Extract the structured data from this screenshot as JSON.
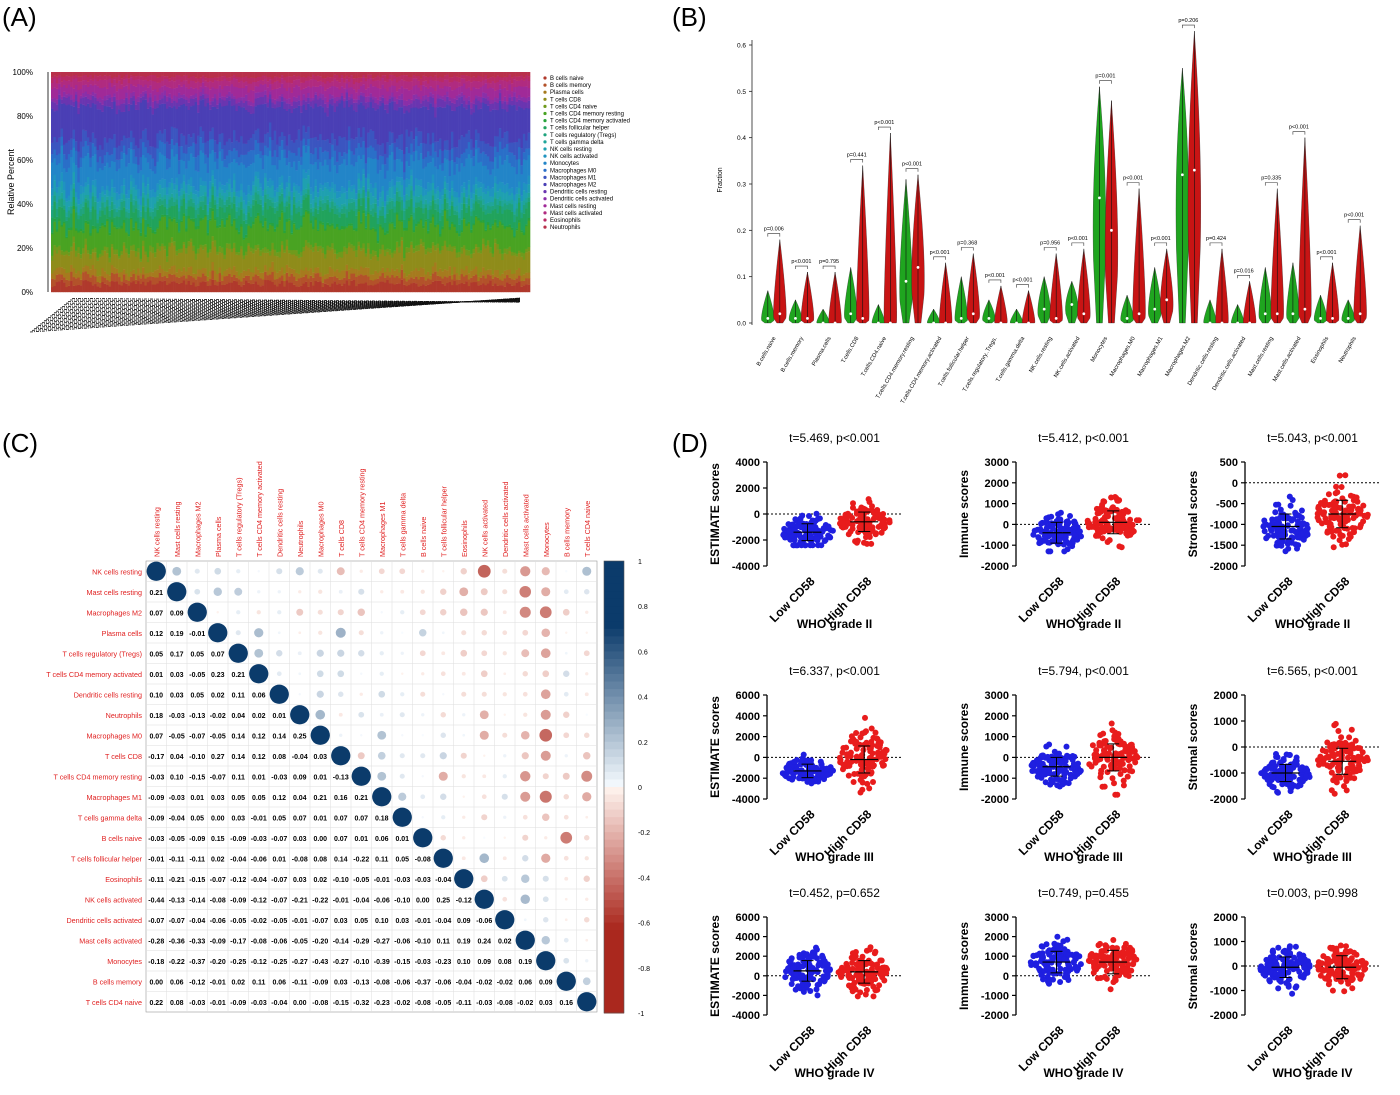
{
  "panel_labels": {
    "a": "(A)",
    "b": "(B)",
    "c": "(C)",
    "d": "(D)"
  },
  "colors": {
    "low": "#1f1fe0",
    "high": "#e81c1c",
    "violin_low": "#1fa51f",
    "violin_high": "#c81414",
    "corr_pos": "#0b3b6b",
    "corr_neg": "#7a0018",
    "corr_label": "#e02020"
  },
  "chart_data": [
    {
      "type": "bar",
      "panel": "A",
      "stacked": true,
      "percent": true,
      "samples_approx": 200,
      "ylabel": "Relative Percent",
      "yticks": [
        "0%",
        "20%",
        "40%",
        "60%",
        "80%",
        "100%"
      ],
      "ylim": [
        0,
        100
      ],
      "legend_position": "right",
      "series": [
        {
          "name": "B cells naive",
          "color": "#b0392c"
        },
        {
          "name": "B cells memory",
          "color": "#b3522a"
        },
        {
          "name": "Plasma cells",
          "color": "#a67a1e"
        },
        {
          "name": "T cells CD8",
          "color": "#8f8c1a"
        },
        {
          "name": "T cells CD4 naive",
          "color": "#6f9a1c"
        },
        {
          "name": "T cells CD4 memory resting",
          "color": "#49a322"
        },
        {
          "name": "T cells CD4 memory activated",
          "color": "#29a33b"
        },
        {
          "name": "T cells follicular helper",
          "color": "#21a35c"
        },
        {
          "name": "T cells regulatory (Tregs)",
          "color": "#1fa37d"
        },
        {
          "name": "T cells gamma delta",
          "color": "#1fa59a"
        },
        {
          "name": "NK cells resting",
          "color": "#1fa0b0"
        },
        {
          "name": "NK cells activated",
          "color": "#1f93c0"
        },
        {
          "name": "Monocytes",
          "color": "#2285c8"
        },
        {
          "name": "Macrophages M0",
          "color": "#2a6fc8"
        },
        {
          "name": "Macrophages M1",
          "color": "#3b55c0"
        },
        {
          "name": "Macrophages M2",
          "color": "#4a3fb5"
        },
        {
          "name": "Dendritic cells resting",
          "color": "#6a35b0"
        },
        {
          "name": "Dendritic cells activated",
          "color": "#8a2fa8"
        },
        {
          "name": "Mast cells resting",
          "color": "#a02a98"
        },
        {
          "name": "Mast cells activated",
          "color": "#b02b80"
        },
        {
          "name": "Eosinophils",
          "color": "#b82b65"
        },
        {
          "name": "Neutrophils",
          "color": "#b8304a"
        }
      ]
    },
    {
      "type": "violin",
      "panel": "B",
      "ylabel": "Fraction",
      "ylim": [
        0,
        0.65
      ],
      "yticks": [
        0.0,
        0.1,
        0.2,
        0.3,
        0.4,
        0.5,
        0.6
      ],
      "categories": [
        "B.cells.naive",
        "B.cells.memory",
        "Plasma.cells",
        "T.cells.CD8",
        "T.cells.CD4.naive",
        "T.cells.CD4.memory.resting",
        "T.cells.CD4.memory.activated",
        "T.cells.follicular.helper",
        "T.cells.regulatory..Tregs.",
        "T.cells.gamma.delta",
        "NK.cells.resting",
        "NK.cells.activated",
        "Monocytes",
        "Macrophages.M0",
        "Macrophages.M1",
        "Macrophages.M2",
        "Dendritic.cells.resting",
        "Dendritic.cells.activated",
        "Mast.cells.resting",
        "Mast.cells.activated",
        "Eosinophils",
        "Neutrophils"
      ],
      "pvalues": [
        "p=0.006",
        "p<0.001",
        "p=0.795",
        "p=0.441",
        "p<0.001",
        "p<0.001",
        "p<0.001",
        "p=0.368",
        "p<0.001",
        "p<0.001",
        "p=0.956",
        "p<0.001",
        "p=0.001",
        "p<0.001",
        "p<0.001",
        "p=0.206",
        "p=0.424",
        "p=0.016",
        "p=0.335",
        "p<0.001",
        "p<0.001",
        "p<0.001"
      ],
      "low_max": [
        0.07,
        0.05,
        0.03,
        0.12,
        0.04,
        0.31,
        0.03,
        0.1,
        0.05,
        0.03,
        0.1,
        0.09,
        0.51,
        0.06,
        0.12,
        0.55,
        0.05,
        0.04,
        0.12,
        0.13,
        0.06,
        0.05
      ],
      "high_max": [
        0.18,
        0.11,
        0.11,
        0.34,
        0.41,
        0.32,
        0.13,
        0.15,
        0.08,
        0.07,
        0.15,
        0.16,
        0.48,
        0.29,
        0.16,
        0.63,
        0.16,
        0.09,
        0.29,
        0.4,
        0.13,
        0.21
      ],
      "low_median": [
        0.01,
        0.01,
        0.0,
        0.02,
        0.0,
        0.09,
        0.0,
        0.01,
        0.01,
        0.0,
        0.03,
        0.04,
        0.27,
        0.01,
        0.03,
        0.32,
        0.0,
        0.0,
        0.02,
        0.02,
        0.01,
        0.01
      ],
      "high_median": [
        0.02,
        0.01,
        0.0,
        0.01,
        0.0,
        0.12,
        0.0,
        0.02,
        0.0,
        0.0,
        0.01,
        0.02,
        0.2,
        0.02,
        0.05,
        0.33,
        0.0,
        0.0,
        0.02,
        0.03,
        0.01,
        0.02
      ]
    },
    {
      "type": "heatmap",
      "panel": "C",
      "labels": [
        "NK cells resting",
        "Mast cells resting",
        "Macrophages M2",
        "Plasma cells",
        "T cells regulatory (Tregs)",
        "T cells CD4 memory activated",
        "Dendritic cells resting",
        "Neutrophils",
        "Macrophages M0",
        "T cells CD8",
        "T cells CD4 memory resting",
        "Macrophages M1",
        "T cells gamma delta",
        "B cells naive",
        "T cells follicular helper",
        "Eosinophils",
        "NK cells activated",
        "Dendritic cells activated",
        "Mast cells activated",
        "Monocytes",
        "B cells memory",
        "T cells CD4 naive"
      ],
      "lower": [
        [],
        [
          0.21
        ],
        [
          0.07,
          0.09
        ],
        [
          0.12,
          0.19,
          -0.01
        ],
        [
          0.05,
          0.17,
          0.05,
          0.07
        ],
        [
          0.01,
          0.03,
          -0.05,
          0.23,
          0.21
        ],
        [
          0.1,
          0.03,
          0.05,
          0.02,
          0.11,
          0.06
        ],
        [
          0.18,
          -0.03,
          -0.13,
          -0.02,
          0.04,
          0.02,
          0.01
        ],
        [
          0.07,
          -0.05,
          -0.07,
          -0.05,
          0.14,
          0.12,
          0.14,
          0.25
        ],
        [
          -0.17,
          0.04,
          -0.1,
          0.27,
          0.14,
          0.12,
          0.08,
          -0.04,
          0.03
        ],
        [
          -0.03,
          0.1,
          -0.15,
          -0.07,
          0.11,
          0.01,
          -0.03,
          0.09,
          0.01,
          -0.13
        ],
        [
          -0.09,
          -0.03,
          0.01,
          0.03,
          0.05,
          0.05,
          0.12,
          0.04,
          0.21,
          0.16,
          0.21
        ],
        [
          -0.09,
          -0.04,
          0.05,
          0.0,
          0.03,
          -0.01,
          0.05,
          0.07,
          0.01,
          0.07,
          0.07,
          0.18
        ],
        [
          -0.03,
          -0.05,
          -0.09,
          0.15,
          -0.09,
          -0.03,
          -0.07,
          0.03,
          0.0,
          0.07,
          0.01,
          0.06,
          0.01
        ],
        [
          -0.01,
          -0.11,
          -0.11,
          0.02,
          -0.04,
          -0.06,
          0.01,
          -0.08,
          0.08,
          0.14,
          -0.22,
          0.11,
          0.05,
          -0.08
        ],
        [
          -0.11,
          -0.21,
          -0.15,
          -0.07,
          -0.12,
          -0.04,
          -0.07,
          0.03,
          0.02,
          -0.1,
          -0.05,
          -0.01,
          -0.03,
          -0.03,
          -0.04
        ],
        [
          -0.44,
          -0.13,
          -0.14,
          -0.08,
          -0.09,
          -0.12,
          -0.07,
          -0.21,
          -0.22,
          -0.01,
          -0.04,
          -0.06,
          -0.1,
          0.0,
          0.25,
          -0.12
        ],
        [
          -0.07,
          -0.07,
          -0.04,
          -0.06,
          -0.05,
          -0.02,
          -0.05,
          -0.01,
          -0.07,
          0.03,
          0.05,
          0.1,
          0.03,
          -0.01,
          -0.04,
          0.09,
          -0.06
        ],
        [
          -0.28,
          -0.36,
          -0.33,
          -0.09,
          -0.17,
          -0.08,
          -0.06,
          -0.05,
          -0.2,
          -0.14,
          -0.29,
          -0.27,
          -0.06,
          -0.1,
          0.11,
          0.19,
          0.24,
          0.02
        ],
        [
          -0.18,
          -0.22,
          -0.37,
          -0.2,
          -0.25,
          -0.12,
          -0.25,
          -0.27,
          -0.43,
          -0.27,
          -0.1,
          -0.39,
          -0.15,
          -0.03,
          -0.23,
          0.1,
          0.09,
          0.08,
          0.19
        ],
        [
          0.0,
          0.06,
          -0.12,
          -0.01,
          0.02,
          0.11,
          0.06,
          -0.11,
          -0.09,
          0.03,
          -0.13,
          -0.08,
          -0.06,
          -0.37,
          -0.06,
          -0.04,
          -0.02,
          -0.02,
          0.06,
          0.09
        ],
        [
          0.22,
          0.08,
          -0.03,
          -0.01,
          -0.09,
          -0.03,
          -0.04,
          0.0,
          -0.08,
          -0.15,
          -0.32,
          -0.23,
          -0.02,
          -0.08,
          -0.05,
          -0.11,
          -0.03,
          -0.08,
          -0.02,
          0.03,
          0.16
        ]
      ],
      "colorbar_ticks": [
        "1",
        "0.8",
        "0.6",
        "0.4",
        "0.2",
        "0",
        "-0.2",
        "-0.4",
        "-0.6",
        "-0.8",
        "-1"
      ]
    },
    {
      "type": "scatter",
      "panel": "D",
      "categories": [
        "Low CD58",
        "High CD58"
      ],
      "subplots": [
        {
          "stat": "t=5.469, p<0.001",
          "ylabel": "ESTIMATE scores",
          "xlabel": "WHO grade II",
          "yticks": [
            4000,
            2000,
            0,
            -2000,
            -4000
          ],
          "ylim": [
            -4000,
            4000
          ],
          "low": {
            "mean": -1400,
            "sd": 650,
            "min": -2400,
            "max": 1500
          },
          "high": {
            "mean": -600,
            "sd": 750,
            "min": -2300,
            "max": 1800
          }
        },
        {
          "stat": "t=5.412, p<0.001",
          "ylabel": "Immune scores",
          "xlabel": "WHO grade II",
          "yticks": [
            3000,
            2000,
            1000,
            0,
            -1000,
            -2000
          ],
          "ylim": [
            -2000,
            3000
          ],
          "low": {
            "mean": -400,
            "sd": 500,
            "min": -1300,
            "max": 1700
          },
          "high": {
            "mean": 100,
            "sd": 550,
            "min": -1200,
            "max": 1900
          }
        },
        {
          "stat": "t=5.043, p<0.001",
          "ylabel": "Stromal scores",
          "xlabel": "WHO grade II",
          "yticks": [
            500,
            0,
            -500,
            -1000,
            -1500,
            -2000
          ],
          "ylim": [
            -2000,
            500
          ],
          "low": {
            "mean": -1050,
            "sd": 300,
            "min": -1700,
            "max": 50
          },
          "high": {
            "mean": -750,
            "sd": 330,
            "min": -1550,
            "max": 300
          }
        },
        {
          "stat": "t=6.337, p<0.001",
          "ylabel": "ESTIMATE scores",
          "xlabel": "WHO grade III",
          "yticks": [
            6000,
            4000,
            2000,
            0,
            -2000,
            -4000
          ],
          "ylim": [
            -4000,
            6000
          ],
          "low": {
            "mean": -1300,
            "sd": 650,
            "min": -2500,
            "max": 1500
          },
          "high": {
            "mean": -200,
            "sd": 1300,
            "min": -3800,
            "max": 3800
          }
        },
        {
          "stat": "t=5.794, p<0.001",
          "ylabel": "Immune scores",
          "xlabel": "WHO grade III",
          "yticks": [
            3000,
            2000,
            1000,
            0,
            -1000,
            -2000
          ],
          "ylim": [
            -2000,
            3000
          ],
          "low": {
            "mean": -450,
            "sd": 450,
            "min": -1400,
            "max": 1500
          },
          "high": {
            "mean": 0,
            "sd": 650,
            "min": -1800,
            "max": 2200
          }
        },
        {
          "stat": "t=6.565, p<0.001",
          "ylabel": "Stromal scores",
          "xlabel": "WHO grade III",
          "yticks": [
            2000,
            1000,
            0,
            -1000,
            -2000
          ],
          "ylim": [
            -2000,
            2000
          ],
          "low": {
            "mean": -1000,
            "sd": 330,
            "min": -1800,
            "max": 0
          },
          "high": {
            "mean": -550,
            "sd": 500,
            "min": -1800,
            "max": 1700
          }
        },
        {
          "stat": "t=0.452, p=0.652",
          "ylabel": "ESTIMATE scores",
          "xlabel": "WHO grade IV",
          "yticks": [
            6000,
            4000,
            2000,
            0,
            -2000,
            -4000
          ],
          "ylim": [
            -4000,
            6000
          ],
          "low": {
            "mean": 500,
            "sd": 1050,
            "min": -2000,
            "max": 3000
          },
          "high": {
            "mean": 400,
            "sd": 1150,
            "min": -2100,
            "max": 3800
          }
        },
        {
          "stat": "t=0.749, p=0.455",
          "ylabel": "Immune scores",
          "xlabel": "WHO grade IV",
          "yticks": [
            3000,
            2000,
            1000,
            0,
            -1000,
            -2000
          ],
          "ylim": [
            -2000,
            3000
          ],
          "low": {
            "mean": 700,
            "sd": 550,
            "min": -600,
            "max": 2000
          },
          "high": {
            "mean": 700,
            "sd": 600,
            "min": -800,
            "max": 2500
          }
        },
        {
          "stat": "t=0.003, p=0.998",
          "ylabel": "Stromal scores",
          "xlabel": "WHO grade IV",
          "yticks": [
            2000,
            1000,
            0,
            -1000,
            -2000
          ],
          "ylim": [
            -2000,
            2000
          ],
          "low": {
            "mean": -50,
            "sd": 420,
            "min": -1300,
            "max": 1200
          },
          "high": {
            "mean": -50,
            "sd": 470,
            "min": -1400,
            "max": 1200
          }
        }
      ]
    }
  ]
}
